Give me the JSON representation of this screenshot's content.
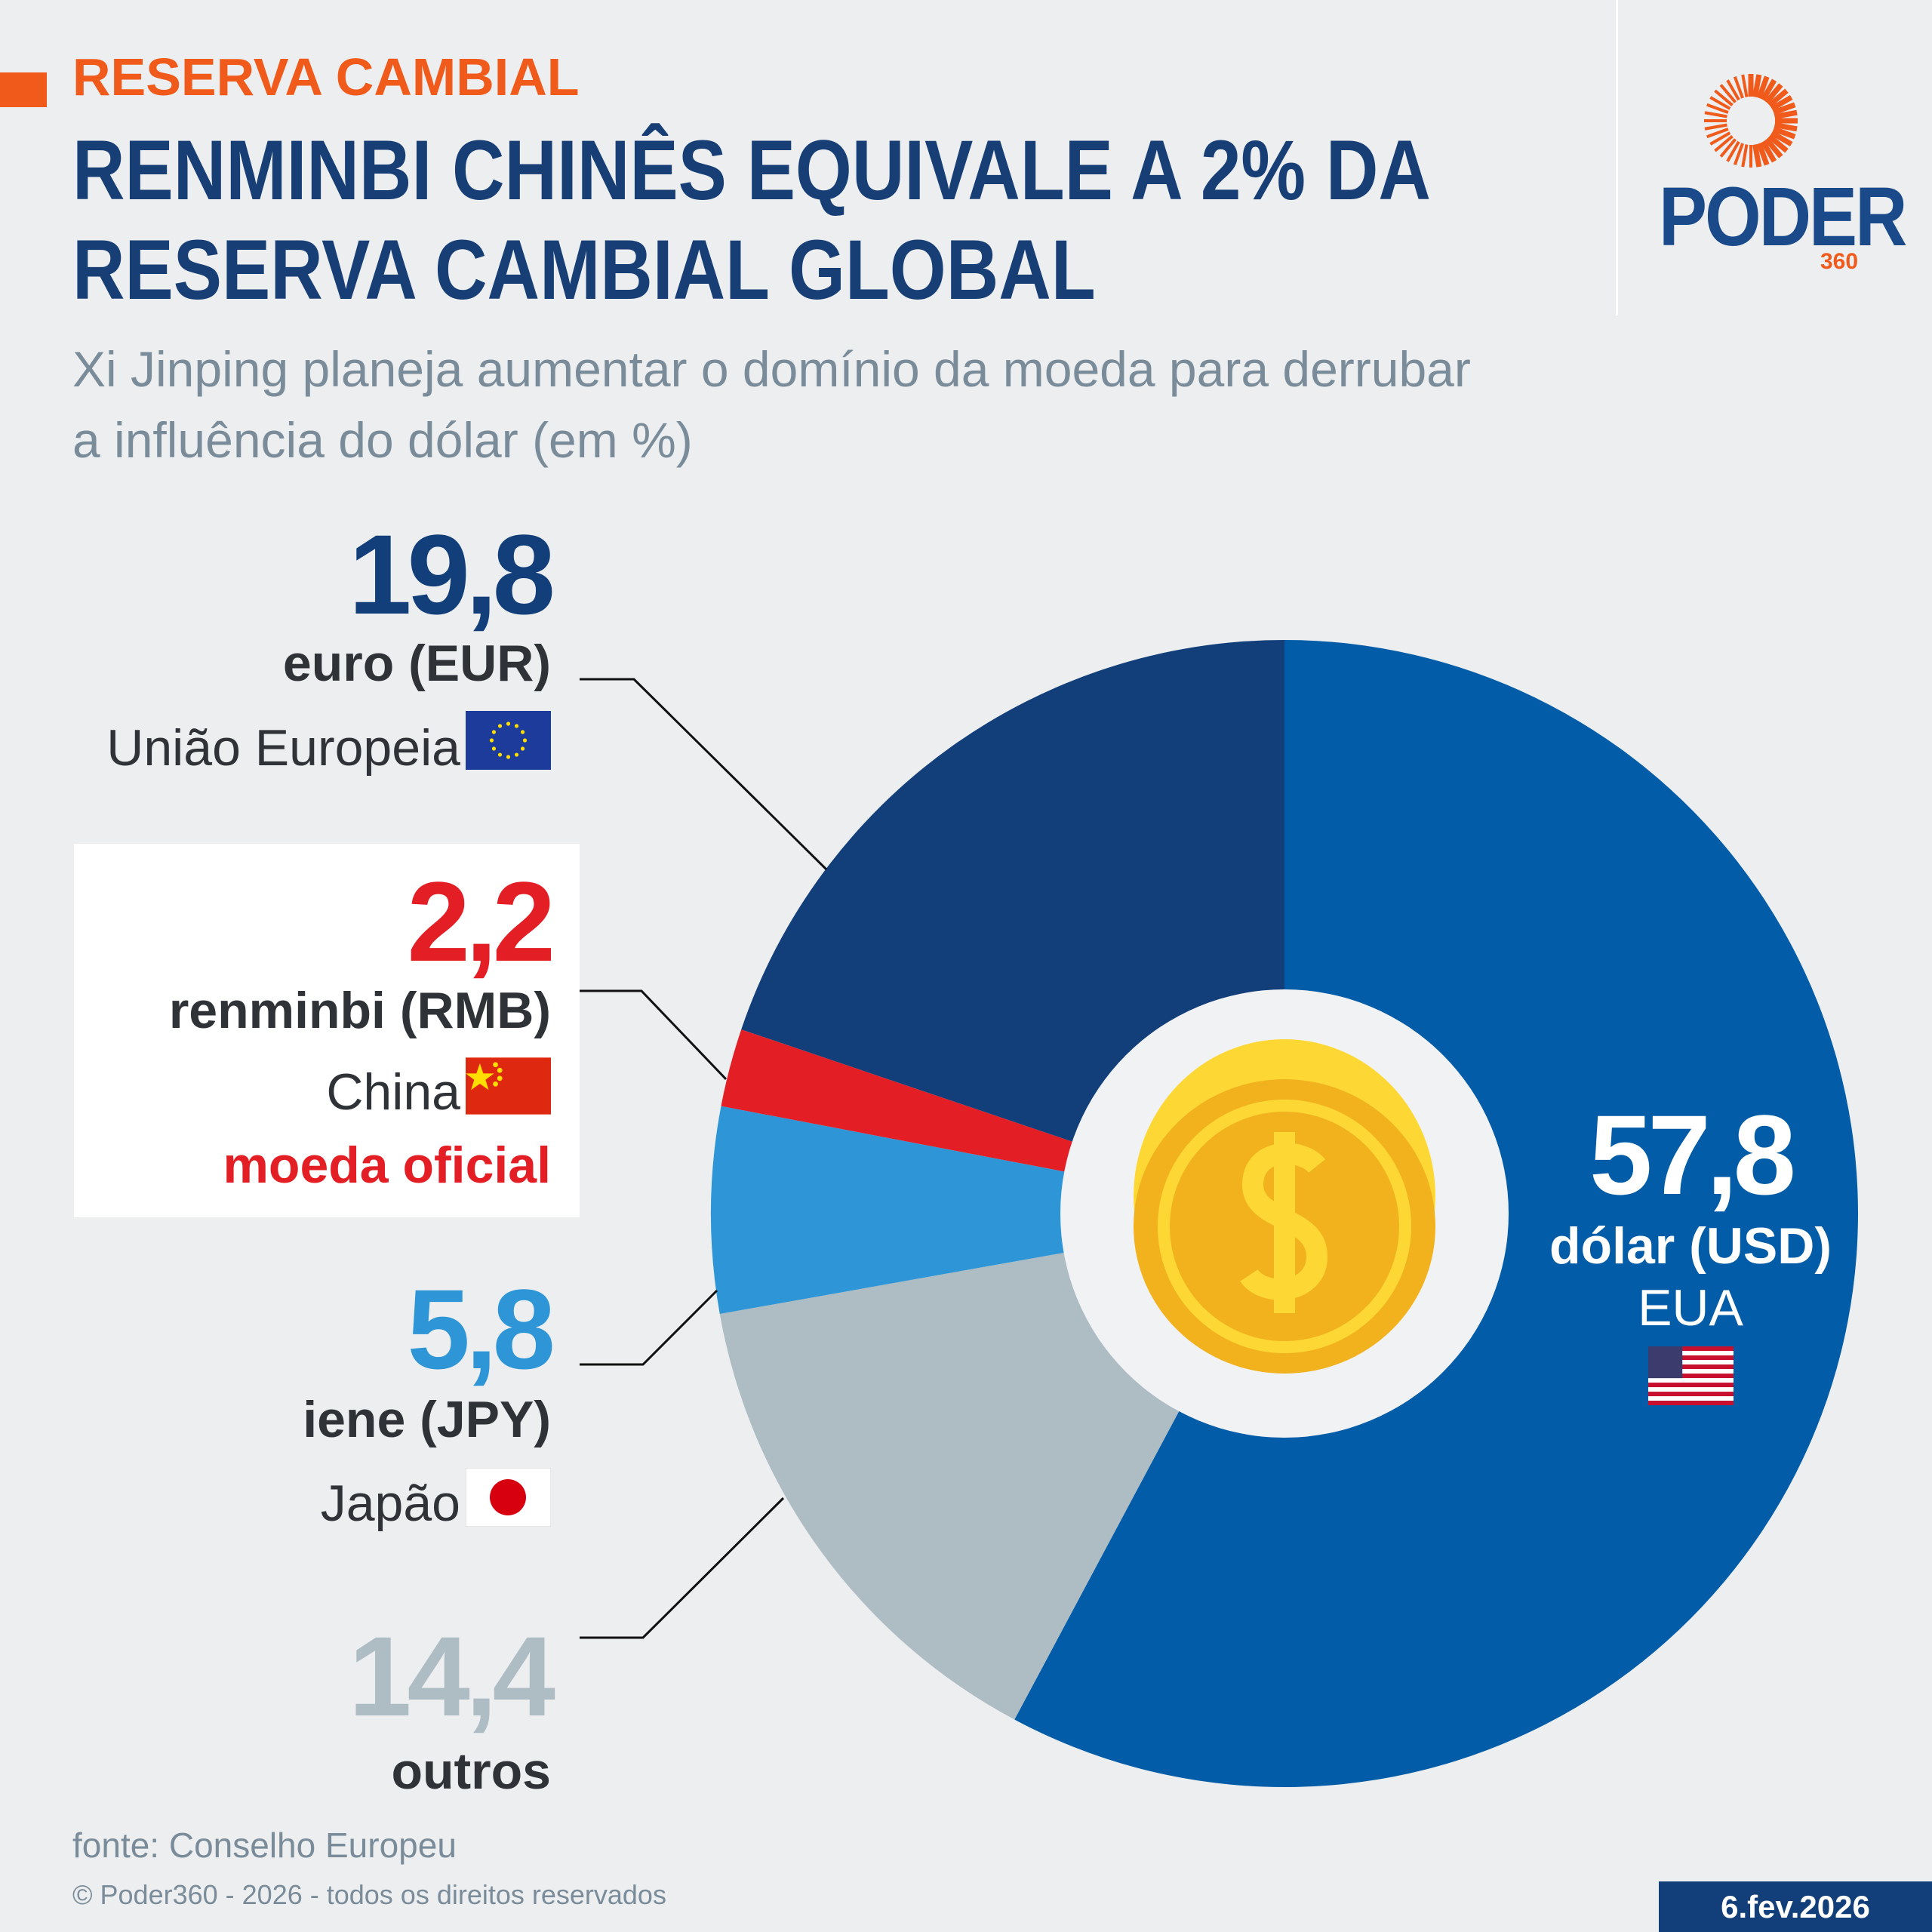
{
  "header": {
    "kicker": "RESERVA CAMBIAL",
    "title": "RENMINBI CHINÊS EQUIVALE A 2% DA RESERVA CAMBIAL GLOBAL",
    "subtitle": "Xi Jinping planeja aumentar o domínio da moeda para derrubar a influência do dólar (em %)"
  },
  "logo": {
    "name": "PODER",
    "suffix": "360"
  },
  "chart_data": {
    "type": "pie",
    "title": "RENMINBI CHINÊS EQUIVALE A 2% DA RESERVA CAMBIAL GLOBAL",
    "unit": "%",
    "slices": [
      {
        "value": 57.8,
        "label": "57,8",
        "currency": "dólar (USD)",
        "country": "EUA",
        "color": "#035ca8"
      },
      {
        "value": 14.4,
        "label": "14,4",
        "currency": "outros",
        "country": "",
        "color": "#aebcc4"
      },
      {
        "value": 5.8,
        "label": "5,8",
        "currency": "iene (JPY)",
        "country": "Japão",
        "color": "#2e96d6"
      },
      {
        "value": 2.2,
        "label": "2,2",
        "currency": "renminbi (RMB)",
        "country": "China",
        "note": "moeda oficial",
        "color": "#e31e24"
      },
      {
        "value": 19.8,
        "label": "19,8",
        "currency": "euro (EUR)",
        "country": "União Europeia",
        "color": "#123f7a"
      }
    ]
  },
  "footer": {
    "source": "fonte: Conselho Europeu",
    "copyright": "© Poder360 - 2026 - todos os direitos reservados",
    "date": "6.fev.2026"
  }
}
